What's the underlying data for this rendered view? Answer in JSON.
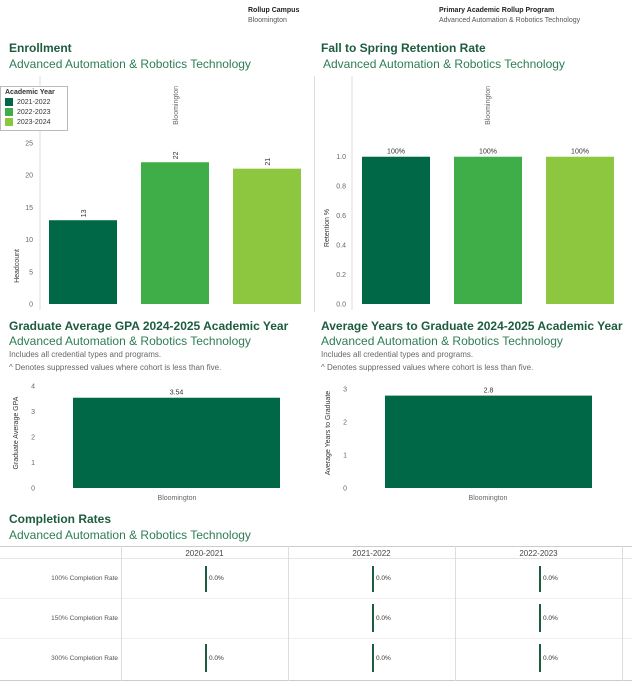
{
  "filters": {
    "campus_label": "Rollup Campus",
    "campus_value": "Bloomington",
    "program_label": "Primary Academic Rollup Program",
    "program_value": "Advanced Automation & Robotics Technology"
  },
  "colors": {
    "dark": "#006847",
    "mid": "#3fae49",
    "light": "#8dc63f",
    "title": "#1e5c3f"
  },
  "enrollment": {
    "title": "Enrollment",
    "subtitle": "Advanced Automation & Robotics Technology",
    "legend_title": "Academic Year",
    "column_header": "Bloomington"
  },
  "retention": {
    "title": "Fall to Spring Retention Rate",
    "subtitle": "Advanced Automation & Robotics Technology",
    "column_header": "Bloomington"
  },
  "gpa": {
    "title": "Graduate Average GPA 2024-2025 Academic Year",
    "subtitle": "Advanced Automation & Robotics Technology",
    "note1": "Includes all credential types and programs.",
    "note2": "^ Denotes suppressed values where cohort is less than five."
  },
  "years_grad": {
    "title": "Average Years to Graduate 2024-2025 Academic Year",
    "subtitle": "Advanced Automation & Robotics Technology",
    "note1": "Includes all credential types and programs.",
    "note2": "^ Denotes suppressed values where cohort is less than five."
  },
  "completion": {
    "title": "Completion Rates",
    "subtitle": "Advanced Automation & Robotics Technology",
    "years": [
      "2020-2021",
      "2021-2022",
      "2022-2023"
    ],
    "rows": [
      {
        "label": "100% Completion Rate",
        "values": [
          "0.0%",
          "0.0%",
          "0.0%"
        ]
      },
      {
        "label": "150% Completion Rate",
        "values": [
          "",
          "0.0%",
          "0.0%"
        ]
      },
      {
        "label": "300% Completion Rate",
        "values": [
          "0.0%",
          "0.0%",
          "0.0%"
        ]
      }
    ]
  },
  "chart_data": [
    {
      "type": "bar",
      "title": "Enrollment",
      "categories": [
        "2021-2022",
        "2022-2023",
        "2023-2024"
      ],
      "values": [
        13,
        22,
        21
      ],
      "data_labels": [
        "13",
        "22",
        "21"
      ],
      "ylabel": "Headcount",
      "ylim": [
        0,
        27
      ],
      "yticks": [
        "0",
        "5",
        "10",
        "15",
        "20",
        "25"
      ],
      "legend": "top-left"
    },
    {
      "type": "bar",
      "title": "Fall to Spring Retention Rate",
      "categories": [
        "2021-2022",
        "2022-2023",
        "2023-2024"
      ],
      "values": [
        1.0,
        1.0,
        1.0
      ],
      "data_labels": [
        "100%",
        "100%",
        "100%"
      ],
      "ylabel": "Retention %",
      "ylim": [
        0,
        1.1
      ],
      "yticks": [
        "0.0",
        "0.2",
        "0.4",
        "0.6",
        "0.8",
        "1.0"
      ]
    },
    {
      "type": "bar",
      "title": "Graduate Average GPA 2024-2025 Academic Year",
      "categories": [
        "Bloomington"
      ],
      "values": [
        3.54
      ],
      "data_labels": [
        "3.54"
      ],
      "ylabel": "Graduate Average GPA",
      "ylim": [
        0,
        4
      ],
      "yticks": [
        "0",
        "1",
        "2",
        "3",
        "4"
      ]
    },
    {
      "type": "bar",
      "title": "Average Years to Graduate 2024-2025 Academic Year",
      "categories": [
        "Bloomington"
      ],
      "values": [
        2.8
      ],
      "data_labels": [
        "2.8"
      ],
      "ylabel": "Average Years to Graduate",
      "ylim": [
        0,
        3
      ],
      "yticks": [
        "0",
        "1",
        "2",
        "3"
      ]
    }
  ]
}
